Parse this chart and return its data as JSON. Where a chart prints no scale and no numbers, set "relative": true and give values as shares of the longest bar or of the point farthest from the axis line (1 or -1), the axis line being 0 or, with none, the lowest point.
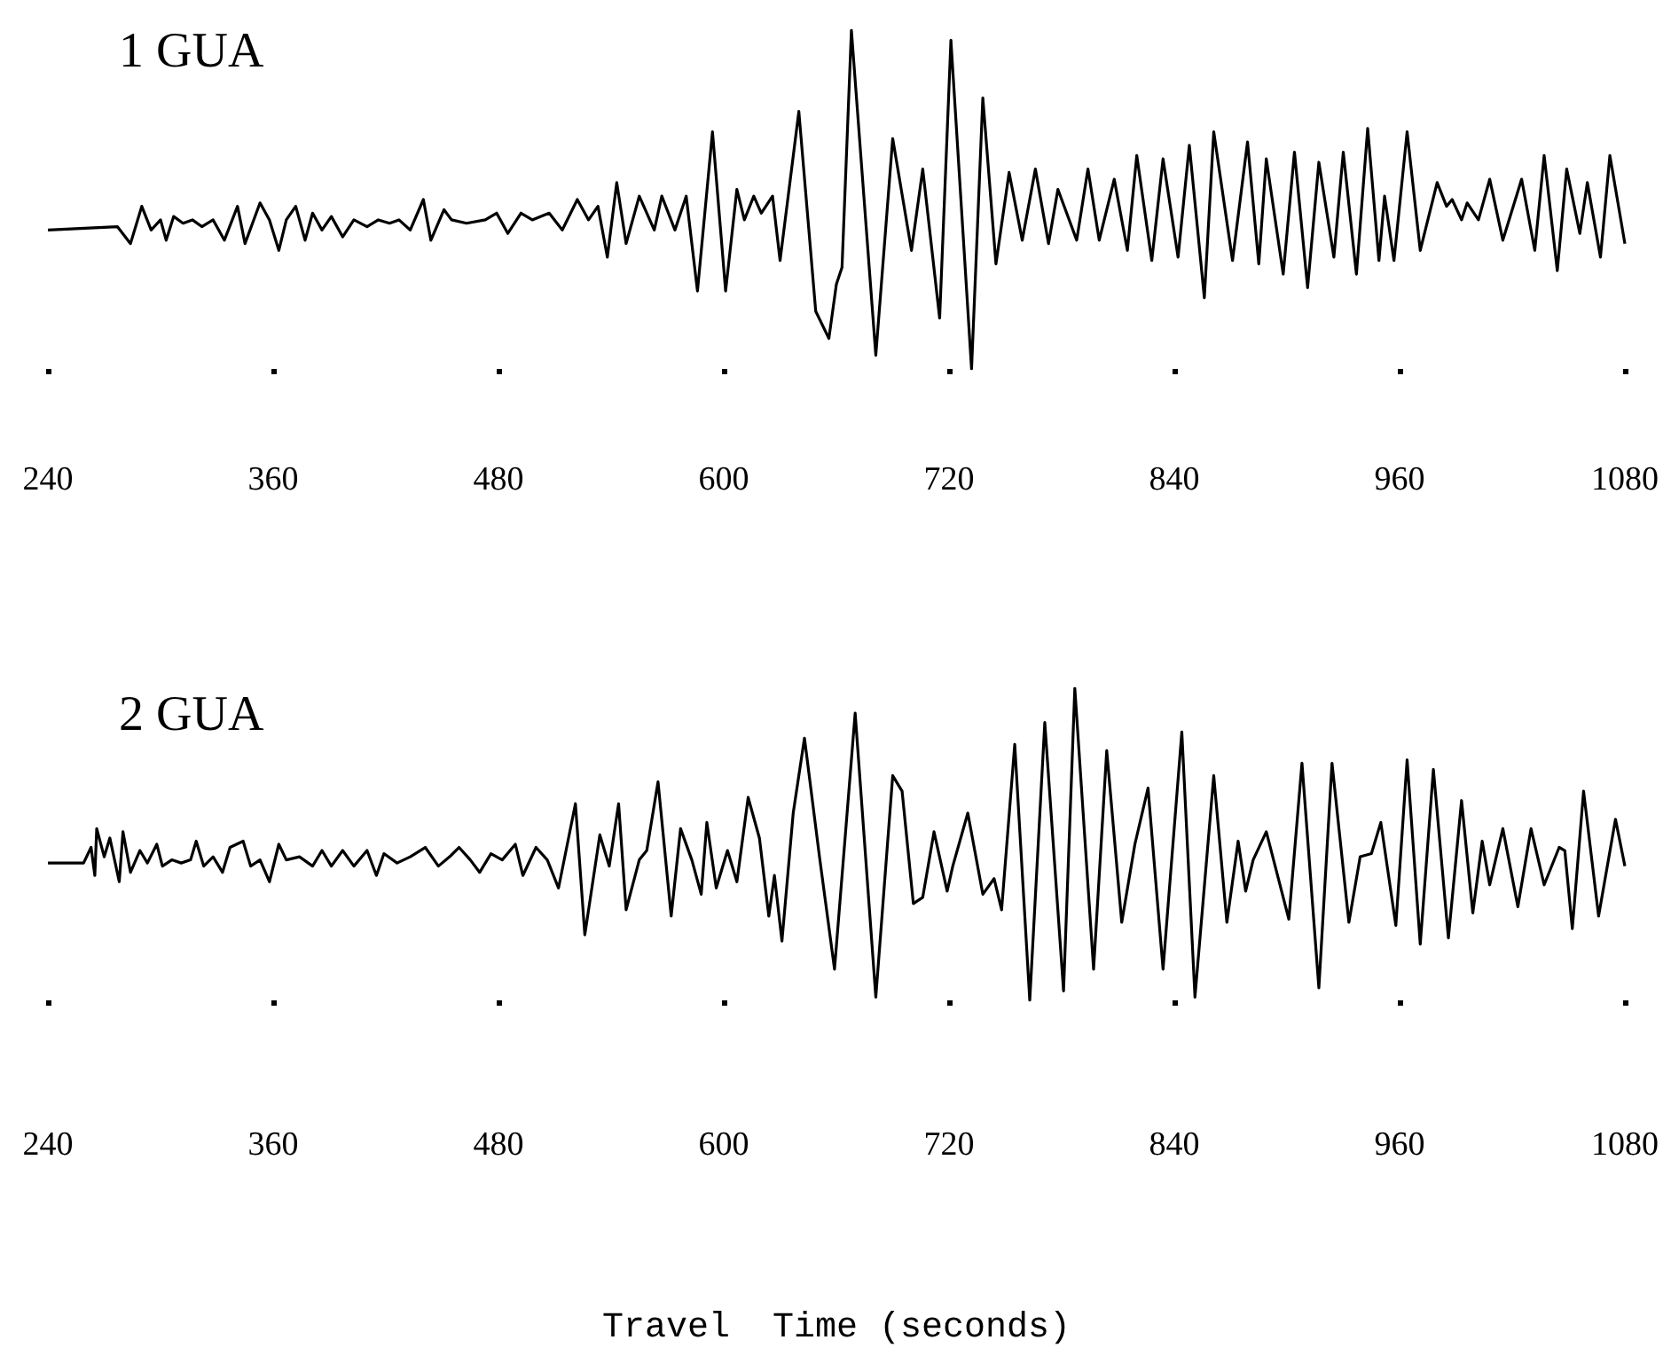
{
  "chart_data": [
    {
      "type": "line",
      "title": "1 GUA",
      "relative": true,
      "xlim": [
        240,
        1080
      ],
      "xticks": [
        240,
        360,
        480,
        600,
        720,
        840,
        960,
        1080
      ],
      "line_style": "solid",
      "series": [
        {
          "color": "#000000",
          "x": [
            240,
            277,
            284,
            290,
            295,
            300,
            303,
            307,
            312,
            317,
            322,
            328,
            334,
            341,
            345,
            353,
            358,
            363,
            367,
            372,
            377,
            381,
            386,
            391,
            397,
            403,
            410,
            416,
            422,
            427,
            433,
            440,
            444,
            451,
            455,
            463,
            473,
            479,
            485,
            492,
            498,
            507,
            514,
            522,
            528,
            533,
            538,
            543,
            548,
            555,
            563,
            567,
            574,
            580,
            586,
            594,
            601,
            607,
            611,
            616,
            620,
            626,
            630,
            640,
            649,
            656,
            660,
            663,
            668,
            681,
            690,
            700,
            706,
            715,
            721,
            732,
            738,
            745,
            752,
            759,
            766,
            773,
            778,
            788,
            794,
            800,
            808,
            815,
            820,
            828,
            834,
            842,
            848,
            856,
            861,
            871,
            879,
            885,
            889,
            898,
            904,
            911,
            917,
            925,
            930,
            937,
            943,
            949,
            952,
            957,
            964,
            971,
            980,
            985,
            988,
            993,
            996,
            1002,
            1008,
            1015,
            1025,
            1032,
            1037,
            1044,
            1049,
            1056,
            1060,
            1067,
            1072,
            1080
          ],
          "values": [
            0.41,
            0.42,
            0.37,
            0.48,
            0.41,
            0.44,
            0.38,
            0.45,
            0.43,
            0.44,
            0.42,
            0.44,
            0.38,
            0.48,
            0.37,
            0.49,
            0.44,
            0.35,
            0.44,
            0.48,
            0.38,
            0.46,
            0.41,
            0.45,
            0.39,
            0.44,
            0.42,
            0.44,
            0.43,
            0.44,
            0.41,
            0.5,
            0.38,
            0.47,
            0.44,
            0.43,
            0.44,
            0.46,
            0.4,
            0.46,
            0.44,
            0.46,
            0.41,
            0.5,
            0.44,
            0.48,
            0.33,
            0.55,
            0.37,
            0.51,
            0.41,
            0.51,
            0.41,
            0.51,
            0.23,
            0.7,
            0.23,
            0.53,
            0.44,
            0.51,
            0.46,
            0.51,
            0.32,
            0.76,
            0.17,
            0.09,
            0.25,
            0.3,
            1.0,
            0.04,
            0.68,
            0.35,
            0.59,
            0.15,
            0.97,
            0.0,
            0.8,
            0.31,
            0.58,
            0.38,
            0.59,
            0.37,
            0.53,
            0.38,
            0.59,
            0.38,
            0.56,
            0.35,
            0.63,
            0.32,
            0.62,
            0.33,
            0.66,
            0.21,
            0.7,
            0.32,
            0.67,
            0.31,
            0.62,
            0.28,
            0.64,
            0.24,
            0.61,
            0.33,
            0.64,
            0.28,
            0.71,
            0.32,
            0.51,
            0.32,
            0.7,
            0.35,
            0.55,
            0.48,
            0.5,
            0.44,
            0.49,
            0.44,
            0.56,
            0.38,
            0.56,
            0.35,
            0.63,
            0.29,
            0.59,
            0.4,
            0.55,
            0.33,
            0.63,
            0.37
          ]
        }
      ]
    },
    {
      "type": "line",
      "title": "2 GUA",
      "xlabel": "Travel  Time (seconds)",
      "relative": true,
      "xlim": [
        240,
        1080
      ],
      "xticks": [
        240,
        360,
        480,
        600,
        720,
        840,
        960,
        1080
      ],
      "line_style": "solid",
      "series": [
        {
          "color": "#000000",
          "x": [
            240,
            259,
            263,
            265,
            266,
            270,
            273,
            278,
            280,
            284,
            289,
            293,
            298,
            301,
            306,
            311,
            316,
            319,
            323,
            328,
            333,
            337,
            344,
            348,
            353,
            358,
            363,
            367,
            374,
            381,
            386,
            391,
            397,
            403,
            410,
            415,
            419,
            426,
            433,
            441,
            448,
            454,
            459,
            465,
            470,
            476,
            482,
            489,
            493,
            500,
            506,
            512,
            521,
            526,
            534,
            539,
            544,
            548,
            555,
            559,
            565,
            572,
            577,
            583,
            588,
            591,
            596,
            602,
            607,
            613,
            619,
            624,
            627,
            631,
            637,
            643,
            651,
            659,
            670,
            681,
            690,
            695,
            701,
            706,
            712,
            719,
            722,
            730,
            738,
            744,
            748,
            755,
            763,
            771,
            781,
            787,
            797,
            804,
            812,
            819,
            826,
            834,
            844,
            851,
            861,
            868,
            874,
            878,
            882,
            889,
            901,
            908,
            917,
            924,
            933,
            939,
            945,
            950,
            958,
            964,
            971,
            978,
            986,
            993,
            999,
            1004,
            1008,
            1015,
            1023,
            1030,
            1037,
            1045,
            1048,
            1052,
            1058,
            1066,
            1075,
            1080
          ],
          "values": [
            0.44,
            0.44,
            0.49,
            0.4,
            0.55,
            0.46,
            0.52,
            0.38,
            0.54,
            0.41,
            0.48,
            0.44,
            0.5,
            0.43,
            0.45,
            0.44,
            0.45,
            0.51,
            0.43,
            0.46,
            0.41,
            0.49,
            0.51,
            0.43,
            0.45,
            0.38,
            0.5,
            0.45,
            0.46,
            0.43,
            0.48,
            0.43,
            0.48,
            0.43,
            0.48,
            0.4,
            0.47,
            0.44,
            0.46,
            0.49,
            0.43,
            0.46,
            0.49,
            0.45,
            0.41,
            0.47,
            0.45,
            0.5,
            0.4,
            0.49,
            0.45,
            0.36,
            0.63,
            0.21,
            0.53,
            0.43,
            0.63,
            0.29,
            0.45,
            0.48,
            0.7,
            0.27,
            0.55,
            0.45,
            0.34,
            0.57,
            0.36,
            0.48,
            0.38,
            0.65,
            0.52,
            0.27,
            0.4,
            0.19,
            0.6,
            0.84,
            0.46,
            0.1,
            0.92,
            0.01,
            0.72,
            0.67,
            0.31,
            0.33,
            0.54,
            0.35,
            0.43,
            0.6,
            0.34,
            0.39,
            0.29,
            0.82,
            0.0,
            0.89,
            0.03,
            1.0,
            0.1,
            0.8,
            0.25,
            0.5,
            0.68,
            0.1,
            0.86,
            0.01,
            0.72,
            0.25,
            0.51,
            0.35,
            0.45,
            0.54,
            0.26,
            0.76,
            0.04,
            0.76,
            0.25,
            0.46,
            0.47,
            0.57,
            0.24,
            0.77,
            0.18,
            0.74,
            0.2,
            0.64,
            0.28,
            0.51,
            0.37,
            0.55,
            0.3,
            0.55,
            0.37,
            0.49,
            0.48,
            0.23,
            0.67,
            0.27,
            0.58,
            0.43
          ]
        }
      ]
    }
  ]
}
